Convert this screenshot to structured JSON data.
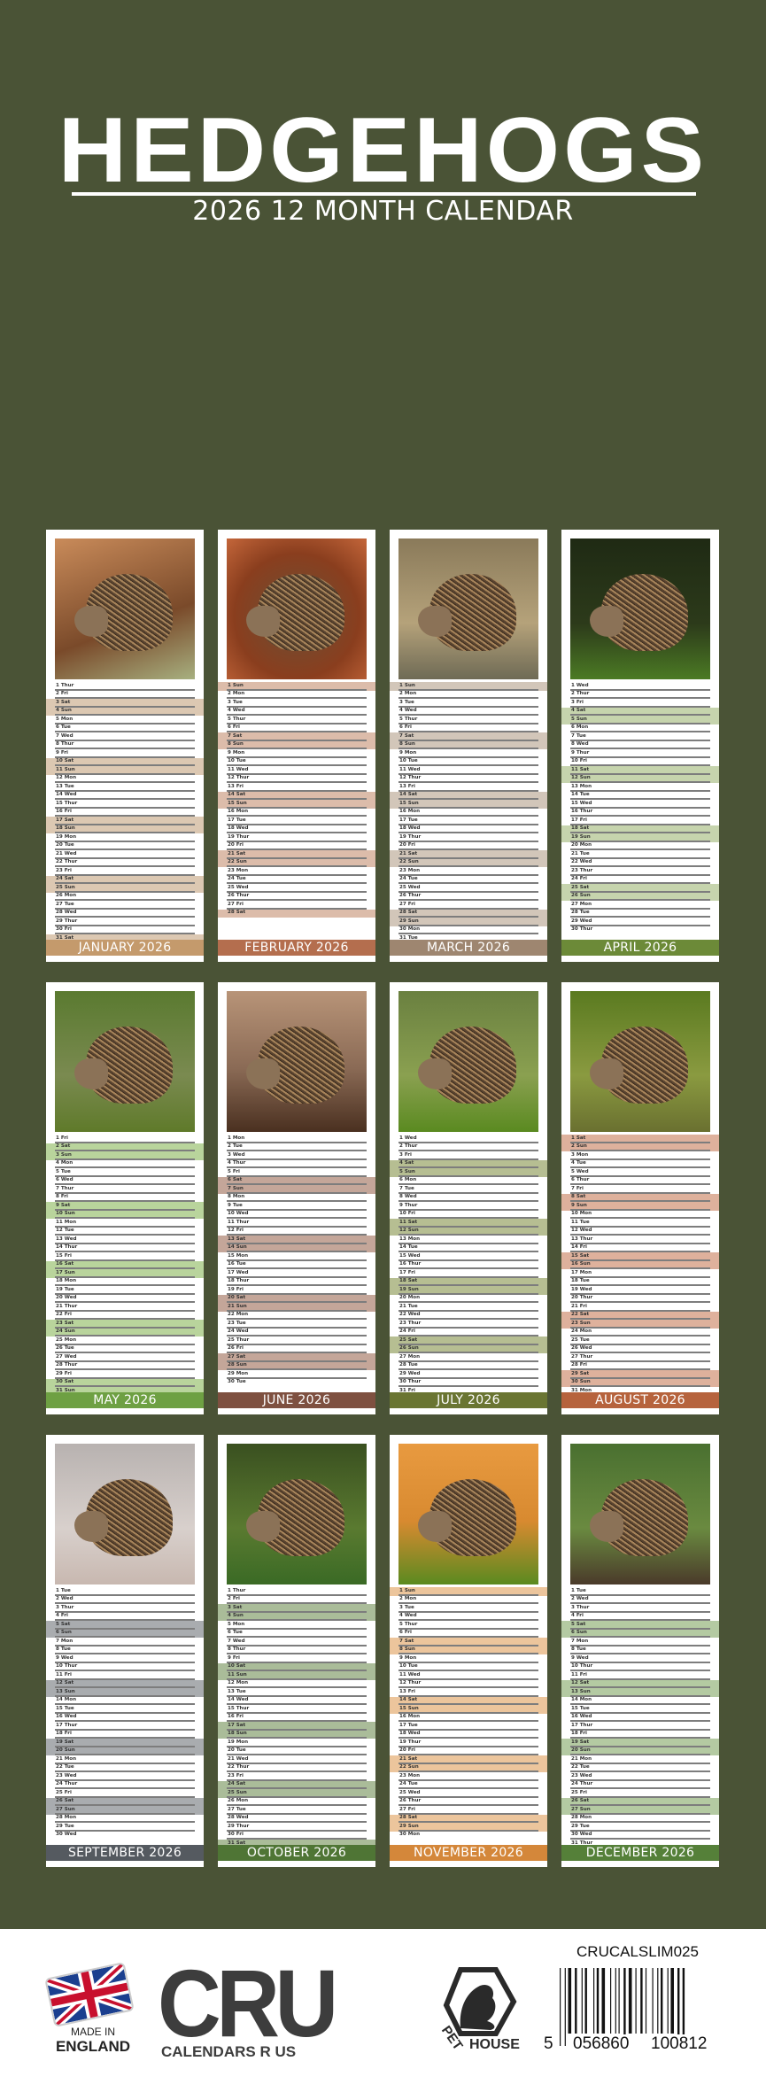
{
  "header": {
    "title": "HEDGEHOGS",
    "subtitle": "2026 12 MONTH CALENDAR"
  },
  "weekday_labels": [
    "Mon",
    "Tue",
    "Wed",
    "Thur",
    "Fri",
    "Sat",
    "Sun"
  ],
  "months": [
    {
      "label": "JANUARY 2026",
      "first_weekday": 3,
      "day_count": 31,
      "band_color": "#c49a6c",
      "weekend_color": "#dcc8b2",
      "photo": "hedgehog-in-leaves"
    },
    {
      "label": "FEBRUARY 2026",
      "first_weekday": 6,
      "day_count": 28,
      "band_color": "#b46e4e",
      "weekend_color": "#dcbcaa",
      "photo": "hedgehog-curled-in-leaves"
    },
    {
      "label": "MARCH 2026",
      "first_weekday": 6,
      "day_count": 31,
      "band_color": "#9e8670",
      "weekend_color": "#d2c6b9",
      "photo": "hedgehog-on-stump"
    },
    {
      "label": "APRIL 2026",
      "first_weekday": 2,
      "day_count": 30,
      "band_color": "#6c8a38",
      "weekend_color": "#c6d4ad",
      "photo": "hedgehog-on-moss"
    },
    {
      "label": "MAY 2026",
      "first_weekday": 4,
      "day_count": 31,
      "band_color": "#6ea043",
      "weekend_color": "#b9d49c",
      "photo": "hedgehog-in-grass"
    },
    {
      "label": "JUNE 2026",
      "first_weekday": 0,
      "day_count": 30,
      "band_color": "#7e5040",
      "weekend_color": "#c4a699",
      "photo": "two-hedgehogs"
    },
    {
      "label": "JULY 2026",
      "first_weekday": 2,
      "day_count": 31,
      "band_color": "#6a7532",
      "weekend_color": "#b6be92",
      "photo": "hedgehog-on-moss-green"
    },
    {
      "label": "AUGUST 2026",
      "first_weekday": 5,
      "day_count": 31,
      "band_color": "#b6633d",
      "weekend_color": "#deb19c",
      "photo": "hedgehog-walking"
    },
    {
      "label": "SEPTEMBER 2026",
      "first_weekday": 1,
      "day_count": 30,
      "band_color": "#555a60",
      "weekend_color": "#a9acaf",
      "photo": "white-hedgehog"
    },
    {
      "label": "OCTOBER 2026",
      "first_weekday": 3,
      "day_count": 31,
      "band_color": "#4f7535",
      "weekend_color": "#aabc99",
      "photo": "hedgehog-on-leaf"
    },
    {
      "label": "NOVEMBER 2026",
      "first_weekday": 6,
      "day_count": 30,
      "band_color": "#d4873a",
      "weekend_color": "#ecc59c",
      "photo": "hedgehog-on-mossy-rock"
    },
    {
      "label": "DECEMBER 2026",
      "first_weekday": 1,
      "day_count": 31,
      "band_color": "#558039",
      "weekend_color": "#b4caa2",
      "photo": "hedgehog-with-flowers"
    }
  ],
  "footer": {
    "made_in": "MADE IN",
    "england": "ENGLAND",
    "cru_logo": "CRU",
    "cru_tagline": "CALENDARS R US",
    "pet_house_logo": "PET HOUSE",
    "product_code": "CRUCALSLIM025",
    "barcode_digits": [
      "5",
      "056860",
      "100812"
    ]
  }
}
